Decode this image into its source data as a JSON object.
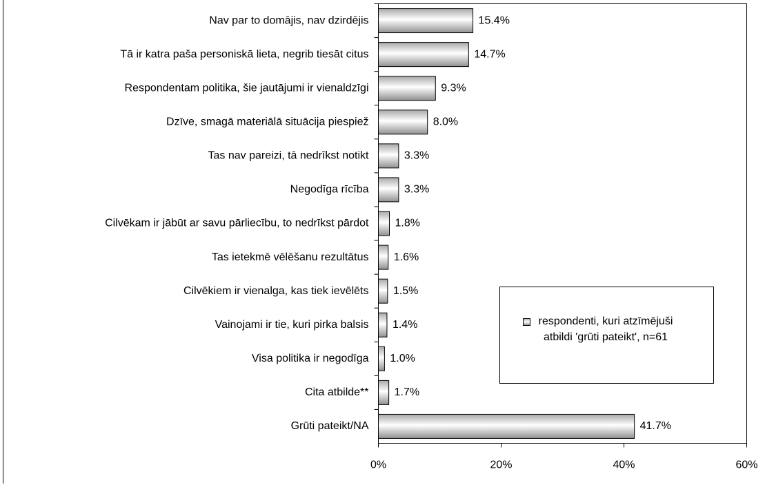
{
  "chart_data": {
    "type": "bar",
    "categories": [
      "Nav par to domājis, nav dzirdējis",
      "Tā ir katra paša personiskā lieta, negrib tiesāt citus",
      "Respondentam politika, šie jautājumi ir vienaldzīgi",
      "Dzīve, smagā materiālā situācija piespiež",
      "Tas nav pareizi, tā nedrīkst notikt",
      "Negodīga rīcība",
      "Cilvēkam ir jābūt ar savu pārliecību, to nedrīkst pārdot",
      "Tas ietekmē vēlēšanu rezultātus",
      "Cilvēkiem ir vienalga, kas tiek ievēlēts",
      "Vainojami ir tie, kuri pirka balsis",
      "Visa politika ir negodīga",
      "Cita atbilde**",
      "Grūti pateikt/NA"
    ],
    "series": [
      {
        "name": "respondenti, kuri atzīmējuši atbildi 'grūti pateikt', n=61",
        "color": "#c0c0c0",
        "values": [
          15.4,
          14.7,
          9.3,
          8.0,
          3.3,
          3.3,
          1.8,
          1.6,
          1.5,
          1.4,
          1.0,
          1.7,
          41.7
        ],
        "value_labels": [
          "15.4%",
          "14.7%",
          "9.3%",
          "8.0%",
          "3.3%",
          "3.3%",
          "1.8%",
          "1.6%",
          "1.5%",
          "1.4%",
          "1.0%",
          "1.7%",
          "41.7%"
        ]
      }
    ],
    "xlim": [
      0,
      60
    ],
    "xticks": [
      {
        "value": 0,
        "label": "0%"
      },
      {
        "value": 20,
        "label": "20%"
      },
      {
        "value": 40,
        "label": "40%"
      },
      {
        "value": 60,
        "label": "60%"
      }
    ],
    "legend": "lower right",
    "grid": false
  }
}
